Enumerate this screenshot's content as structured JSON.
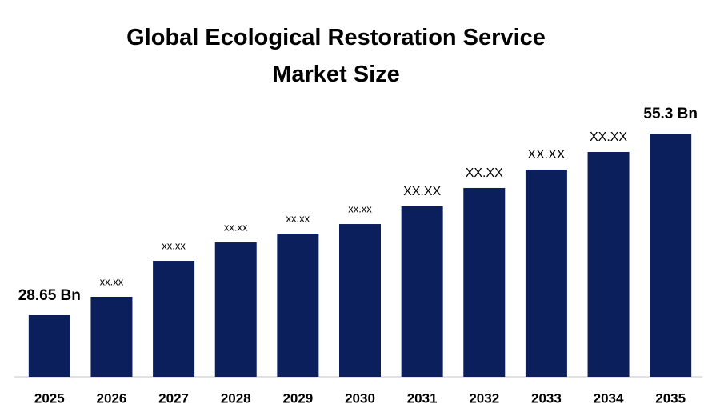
{
  "chart_data": {
    "type": "bar",
    "title": "Global Ecological Restoration Service Market Size",
    "categories": [
      "2025",
      "2026",
      "2027",
      "2028",
      "2029",
      "2030",
      "2031",
      "2032",
      "2033",
      "2034",
      "2035"
    ],
    "values": [
      28.65,
      31.35,
      36.63,
      39.33,
      40.62,
      42.03,
      44.62,
      47.32,
      50.02,
      52.6,
      55.3
    ],
    "value_labels": [
      "28.65 Bn",
      "xx.xx",
      "xx.xx",
      "xx.xx",
      "xx.xx",
      "xx.xx",
      "XX.XX",
      "XX.XX",
      "XX.XX",
      "XX.XX",
      "55.3 Bn"
    ],
    "color": "#0a1f5c"
  }
}
